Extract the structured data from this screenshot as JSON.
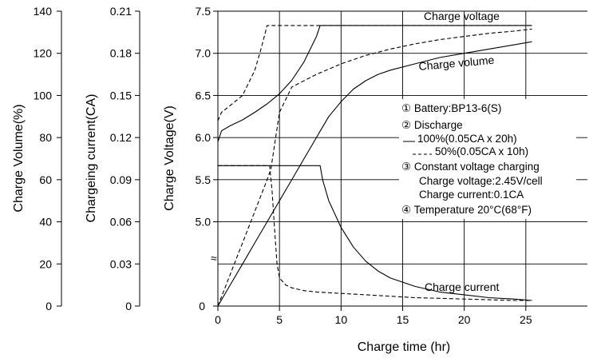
{
  "chart_data": {
    "type": "line",
    "axes": {
      "x": {
        "label": "Charge time  (hr)",
        "range": [
          0,
          30
        ],
        "ticks": [
          "0",
          "5",
          "10",
          "15",
          "20",
          "25"
        ]
      },
      "voltage": {
        "label": "Charge Voltage(V)",
        "range": [
          4.0,
          7.5
        ],
        "ticks": [
          "5.0",
          "5.5",
          "6.0",
          "6.5",
          "7.0",
          "7.5"
        ],
        "zero_label": "0",
        "break_symbol": "≈"
      },
      "current": {
        "label": "Chargeing current(CA)",
        "range": [
          0,
          0.21
        ],
        "ticks": [
          "0",
          "0.03",
          "0.06",
          "0.09",
          "0.12",
          "0.15",
          "0.18",
          "0.21"
        ]
      },
      "volume": {
        "label": "Charge Volume(%)",
        "range": [
          0,
          140
        ],
        "ticks": [
          "0",
          "20",
          "40",
          "60",
          "80",
          "100",
          "120",
          "140"
        ]
      }
    },
    "grid": true,
    "annotations": {
      "voltage": "Charge voltage",
      "volume": "Charge volume",
      "current": "Charge current"
    },
    "legend": {
      "item1": "① Battery:BP13-6(S)",
      "item2": "② Discharge",
      "item2a": "100%(0.05CA x 20h)",
      "item2b": "50%(0.05CA x 10h)",
      "item3": "③ Constant voltage charging",
      "item3a": "Charge voltage:2.45V/cell",
      "item3b": "Charge current:0.1CA",
      "item4": "④ Temperature 20°C(68°F)"
    },
    "series": [
      {
        "name": "100%(0.05CA x 20h)",
        "quantity": "voltage",
        "style": "solid",
        "x": [
          0,
          0.3,
          1,
          2,
          3,
          4,
          5,
          6,
          7,
          8,
          8.3,
          9,
          10,
          12,
          14,
          16,
          18,
          20,
          22,
          24,
          25.5
        ],
        "y": [
          5.95,
          6.08,
          6.14,
          6.21,
          6.3,
          6.4,
          6.52,
          6.68,
          6.9,
          7.2,
          7.33,
          7.33,
          7.33,
          7.33,
          7.33,
          7.33,
          7.33,
          7.33,
          7.33,
          7.33,
          7.33
        ]
      },
      {
        "name": "50%(0.05CA x 10h)",
        "quantity": "voltage",
        "style": "dashed",
        "x": [
          0,
          0.3,
          1,
          2,
          3,
          3.5,
          4,
          4.3,
          5,
          6,
          8,
          10,
          12,
          14,
          16,
          18,
          20,
          22,
          24,
          25.5
        ],
        "y": [
          6.2,
          6.3,
          6.38,
          6.5,
          6.8,
          7.05,
          7.33,
          7.33,
          7.33,
          7.33,
          7.33,
          7.33,
          7.33,
          7.33,
          7.33,
          7.33,
          7.33,
          7.33,
          7.33,
          7.33
        ]
      },
      {
        "name": "100%(0.05CA x 20h)",
        "quantity": "volume",
        "style": "solid",
        "x": [
          0,
          1,
          2,
          3,
          4,
          5,
          6,
          7,
          8,
          8.3,
          9,
          10,
          11,
          12,
          13,
          14,
          16,
          18,
          20,
          22,
          24,
          25.5
        ],
        "y": [
          0,
          10,
          20,
          30,
          40,
          50,
          60,
          70,
          80,
          83,
          90,
          97,
          103,
          107,
          110,
          112,
          115,
          118,
          120,
          122,
          124,
          125.5
        ]
      },
      {
        "name": "50%(0.05CA x 10h)",
        "quantity": "volume",
        "style": "dashed",
        "x": [
          0,
          1,
          2,
          3,
          4,
          4.3,
          5,
          6,
          8,
          10,
          12,
          14,
          16,
          18,
          20,
          22,
          24,
          25.5
        ],
        "y": [
          0,
          15,
          30,
          45,
          60,
          65,
          92,
          104,
          110,
          115,
          119,
          122,
          124.5,
          126.5,
          128,
          129.5,
          130.5,
          131.5
        ]
      },
      {
        "name": "100%(0.05CA x 20h)",
        "quantity": "current",
        "style": "solid",
        "x": [
          0,
          8.3,
          8.5,
          9,
          10,
          11,
          12,
          13,
          14,
          15,
          16,
          18,
          20,
          22,
          24,
          25.5
        ],
        "y": [
          0.1,
          0.1,
          0.09,
          0.075,
          0.056,
          0.042,
          0.032,
          0.025,
          0.02,
          0.017,
          0.014,
          0.01,
          0.008,
          0.006,
          0.005,
          0.004
        ]
      },
      {
        "name": "50%(0.05CA x 10h)",
        "quantity": "current",
        "style": "dashed",
        "x": [
          0,
          4.2,
          4.4,
          4.6,
          4.8,
          5,
          5.5,
          6,
          7,
          8,
          10,
          12,
          14,
          16,
          18,
          20,
          22,
          24,
          25.5
        ],
        "y": [
          0.1,
          0.1,
          0.082,
          0.055,
          0.03,
          0.02,
          0.015,
          0.013,
          0.011,
          0.01,
          0.009,
          0.008,
          0.007,
          0.006,
          0.0055,
          0.005,
          0.0045,
          0.004,
          0.004
        ]
      }
    ]
  }
}
